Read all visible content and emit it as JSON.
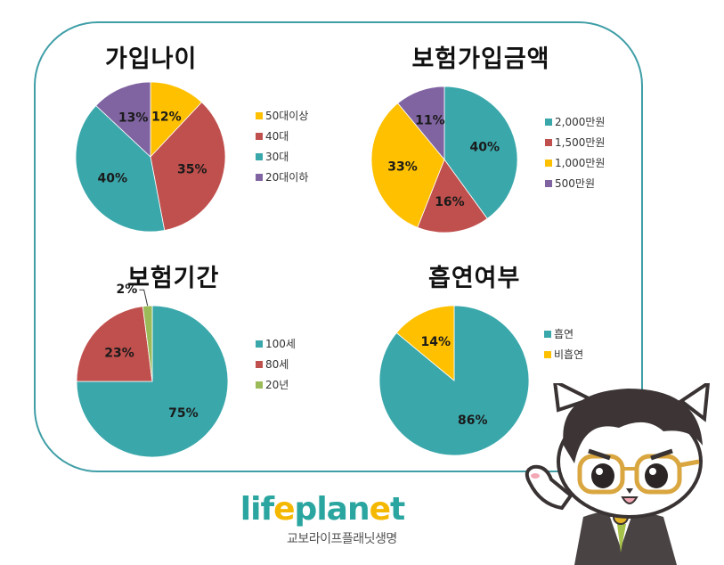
{
  "charts": [
    {
      "title": "가입나이",
      "legend": [
        "50대이상",
        "40대",
        "30대",
        "20대이하"
      ],
      "labels": [
        "12%",
        "35%",
        "40%",
        "13%"
      ]
    },
    {
      "title": "보험가입금액",
      "legend": [
        "2,000만원",
        "1,500만원",
        "1,000만원",
        "500만원"
      ],
      "labels": [
        "40%",
        "16%",
        "33%",
        "11%"
      ]
    },
    {
      "title": "보험기간",
      "legend": [
        "100세",
        "80세",
        "20년"
      ],
      "labels": [
        "75%",
        "23%",
        "2%"
      ]
    },
    {
      "title": "흡연여부",
      "legend": [
        "흡연",
        "비흡연"
      ],
      "labels": [
        "86%",
        "14%"
      ]
    }
  ],
  "colors": {
    "teal": "#3aa7ab",
    "red": "#c0504d",
    "yellow": "#ffc000",
    "purple": "#8064a2",
    "green": "#9bbb59",
    "border": "#3f9ea6"
  },
  "brand": {
    "logo_prefix": "lif",
    "logo_e1": "e",
    "logo_mid": "plan",
    "logo_e2": "e",
    "logo_suffix": "t",
    "subtitle": "교보라이프플래닛생명"
  },
  "chart_data": [
    {
      "type": "pie",
      "title": "가입나이",
      "categories": [
        "50대이상",
        "40대",
        "30대",
        "20대이하"
      ],
      "values": [
        12,
        35,
        40,
        13
      ],
      "colors": [
        "#ffc000",
        "#c0504d",
        "#3aa7ab",
        "#8064a2"
      ],
      "legend_position": "right",
      "start_angle": "12 o'clock, clockwise"
    },
    {
      "type": "pie",
      "title": "보험가입금액",
      "categories": [
        "2,000만원",
        "1,500만원",
        "1,000만원",
        "500만원"
      ],
      "values": [
        40,
        16,
        33,
        11
      ],
      "colors": [
        "#3aa7ab",
        "#c0504d",
        "#ffc000",
        "#8064a2"
      ],
      "legend_position": "right",
      "start_angle": "12 o'clock, clockwise"
    },
    {
      "type": "pie",
      "title": "보험기간",
      "categories": [
        "100세",
        "80세",
        "20년"
      ],
      "values": [
        75,
        23,
        2
      ],
      "colors": [
        "#3aa7ab",
        "#c0504d",
        "#9bbb59"
      ],
      "legend_position": "right",
      "start_angle": "12 o'clock, clockwise"
    },
    {
      "type": "pie",
      "title": "흡연여부",
      "categories": [
        "흡연",
        "비흡연"
      ],
      "values": [
        86,
        14
      ],
      "colors": [
        "#3aa7ab",
        "#ffc000"
      ],
      "legend_position": "right",
      "start_angle": "12 o'clock, clockwise"
    }
  ]
}
